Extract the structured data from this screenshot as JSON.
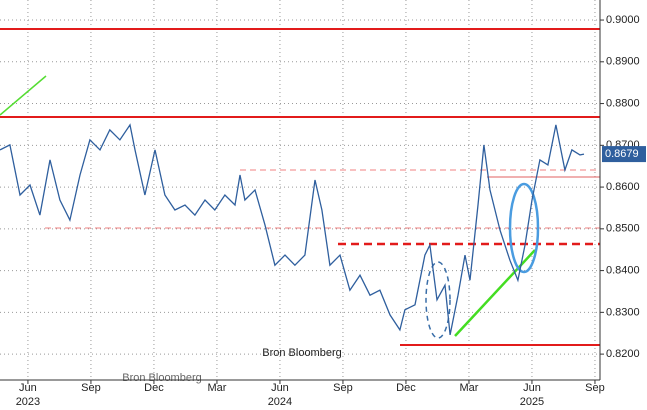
{
  "chart_data": {
    "type": "line",
    "x": [
      -1.33,
      -0.86,
      -0.38,
      0.1,
      0.57,
      1.05,
      1.52,
      2,
      2.48,
      2.95,
      3.43,
      3.9,
      4.38,
      4.86,
      5.1,
      5.57,
      6.05,
      6.52,
      7,
      7.48,
      7.95,
      8.43,
      8.9,
      9.38,
      9.86,
      10.1,
      10.33,
      10.81,
      11.29,
      11.76,
      12.24,
      12.71,
      13.19,
      13.67,
      14,
      14.38,
      14.86,
      15.33,
      15.81,
      16.29,
      16.76,
      17.24,
      17.71,
      17.95,
      18.43,
      18.9,
      19.14,
      19.48,
      19.86,
      20.1,
      20.48,
      20.81,
      21.05,
      21.43,
      21.71,
      22,
      22.48,
      22.95,
      23.33,
      23.67,
      24,
      24.38,
      24.76,
      25.14,
      25.57,
      25.9,
      26.29,
      26.48
    ],
    "series": [
      {
        "color": "#2f5f9e",
        "values": [
          0.8689,
          0.8701,
          0.8581,
          0.8605,
          0.8533,
          0.8665,
          0.8569,
          0.8521,
          0.8629,
          0.8713,
          0.8689,
          0.8737,
          0.8713,
          0.8749,
          0.8689,
          0.8581,
          0.8689,
          0.8581,
          0.8545,
          0.8557,
          0.8533,
          0.8569,
          0.8545,
          0.8581,
          0.8557,
          0.8629,
          0.8569,
          0.8593,
          0.8509,
          0.8413,
          0.8437,
          0.8413,
          0.8437,
          0.8617,
          0.8545,
          0.8413,
          0.8437,
          0.8353,
          0.8389,
          0.8341,
          0.8353,
          0.8294,
          0.8258,
          0.8306,
          0.8318,
          0.8437,
          0.8461,
          0.833,
          0.8365,
          0.8246,
          0.8341,
          0.8437,
          0.8377,
          0.8557,
          0.8701,
          0.8593,
          0.8497,
          0.8425,
          0.8377,
          0.8461,
          0.8569,
          0.8665,
          0.8653,
          0.8749,
          0.8641,
          0.8689,
          0.8677,
          0.8679
        ]
      }
    ],
    "xlim": [
      -1.33,
      27.24
    ],
    "xticks": [
      {
        "value": 0,
        "label": "Jun"
      },
      {
        "value": 3,
        "label": "Sep"
      },
      {
        "value": 6,
        "label": "Dec"
      },
      {
        "value": 9,
        "label": "Mar"
      },
      {
        "value": 12,
        "label": "Jun"
      },
      {
        "value": 15,
        "label": "Sep"
      },
      {
        "value": 18,
        "label": "Dec"
      },
      {
        "value": 21,
        "label": "Mar"
      },
      {
        "value": 24,
        "label": "Jun"
      },
      {
        "value": 27,
        "label": "Sep"
      }
    ],
    "year_labels": [
      {
        "value": 0,
        "label": "2023"
      },
      {
        "value": 12,
        "label": "2024"
      },
      {
        "value": 24,
        "label": "2025"
      }
    ],
    "ylim": [
      0.8138,
      0.9048
    ],
    "yticks": [
      {
        "value": 0.82,
        "label": "0.8200"
      },
      {
        "value": 0.83,
        "label": "0.8300"
      },
      {
        "value": 0.84,
        "label": "0.8400"
      },
      {
        "value": 0.85,
        "label": "0.8500"
      },
      {
        "value": 0.86,
        "label": "0.8600"
      },
      {
        "value": 0.87,
        "label": "0.8700"
      },
      {
        "value": 0.88,
        "label": "0.8800"
      },
      {
        "value": 0.89,
        "label": "0.8900"
      },
      {
        "value": 0.9,
        "label": "0.9000"
      }
    ],
    "last_value": {
      "value": 0.8679,
      "label": "0.8679"
    },
    "grid": true,
    "source": "Bron Bloomberg"
  }
}
